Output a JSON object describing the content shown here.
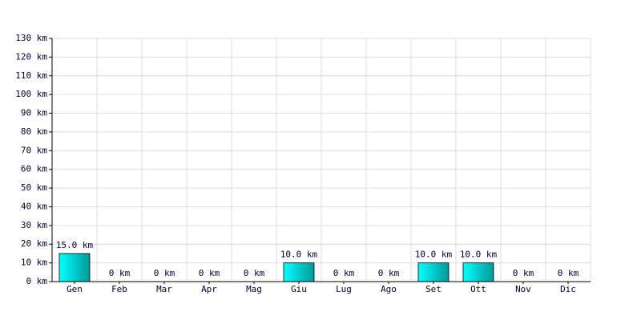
{
  "chart_data": {
    "type": "bar",
    "categories": [
      "Gen",
      "Feb",
      "Mar",
      "Apr",
      "Mag",
      "Giu",
      "Lug",
      "Ago",
      "Set",
      "Ott",
      "Nov",
      "Dic"
    ],
    "values": [
      15,
      0,
      0,
      0,
      0,
      10,
      0,
      0,
      10,
      10,
      0,
      0
    ],
    "value_labels": [
      "15.0 km",
      "0 km",
      "0 km",
      "0 km",
      "0 km",
      "10.0 km",
      "0 km",
      "0 km",
      "10.0 km",
      "10.0 km",
      "0 km",
      "0 km"
    ],
    "color": "#009999",
    "ylim": [
      0,
      130
    ],
    "yticks": [
      {
        "value": 0,
        "label": "0 km"
      },
      {
        "value": 10,
        "label": "10 km"
      },
      {
        "value": 20,
        "label": "20 km"
      },
      {
        "value": 30,
        "label": "30 km"
      },
      {
        "value": 40,
        "label": "40 km"
      },
      {
        "value": 50,
        "label": "50 km"
      },
      {
        "value": 60,
        "label": "60 km"
      },
      {
        "value": 70,
        "label": "70 km"
      },
      {
        "value": 80,
        "label": "80 km"
      },
      {
        "value": 90,
        "label": "90 km"
      },
      {
        "value": 100,
        "label": "100 km"
      },
      {
        "value": 110,
        "label": "110 km"
      },
      {
        "value": 120,
        "label": "120 km"
      },
      {
        "value": 130,
        "label": "130 km"
      }
    ],
    "grid": true
  }
}
